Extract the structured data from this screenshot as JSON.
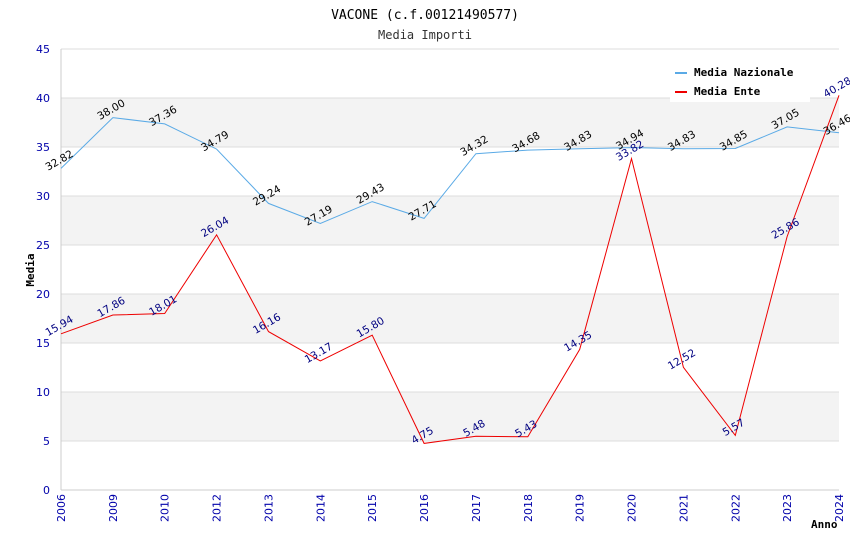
{
  "chart_data": {
    "type": "line",
    "title": "VACONE (c.f.00121490577)",
    "subtitle": "Media Importi",
    "xlabel": "Anno",
    "ylabel": "Media",
    "ylim": [
      0,
      45
    ],
    "yticks": [
      0,
      5,
      10,
      15,
      20,
      25,
      30,
      35,
      40,
      45
    ],
    "grid": true,
    "legend_position": "top-right",
    "categories": [
      "2006",
      "2009",
      "2010",
      "2012",
      "2013",
      "2014",
      "2015",
      "2016",
      "2017",
      "2018",
      "2019",
      "2020",
      "2021",
      "2022",
      "2023",
      "2024"
    ],
    "series": [
      {
        "name": "Media Nazionale",
        "color": "#5aaae6",
        "label_color": "#000000",
        "values": [
          32.82,
          38.0,
          37.36,
          34.79,
          29.24,
          27.19,
          29.43,
          27.71,
          34.32,
          34.68,
          34.83,
          34.94,
          34.83,
          34.85,
          37.05,
          36.46
        ],
        "labels": [
          "32.82",
          "38.00",
          "37.36",
          "34.79",
          "29.24",
          "27.19",
          "29.43",
          "27.71",
          "34.32",
          "34.68",
          "34.83",
          "34.94",
          "34.83",
          "34.85",
          "37.05",
          "36.46"
        ]
      },
      {
        "name": "Media Ente",
        "color": "#ee0000",
        "label_color": "#000080",
        "values": [
          15.94,
          17.86,
          18.01,
          26.04,
          16.16,
          13.17,
          15.8,
          4.75,
          5.48,
          5.43,
          14.35,
          33.82,
          12.52,
          5.57,
          25.86,
          40.28
        ],
        "labels": [
          "15.94",
          "17.86",
          "18.01",
          "26.04",
          "16.16",
          "13.17",
          "15.80",
          "4.75",
          "5.48",
          "5.43",
          "14.35",
          "33.82",
          "12.52",
          "5.57",
          "25.86",
          "40.28"
        ]
      }
    ]
  }
}
